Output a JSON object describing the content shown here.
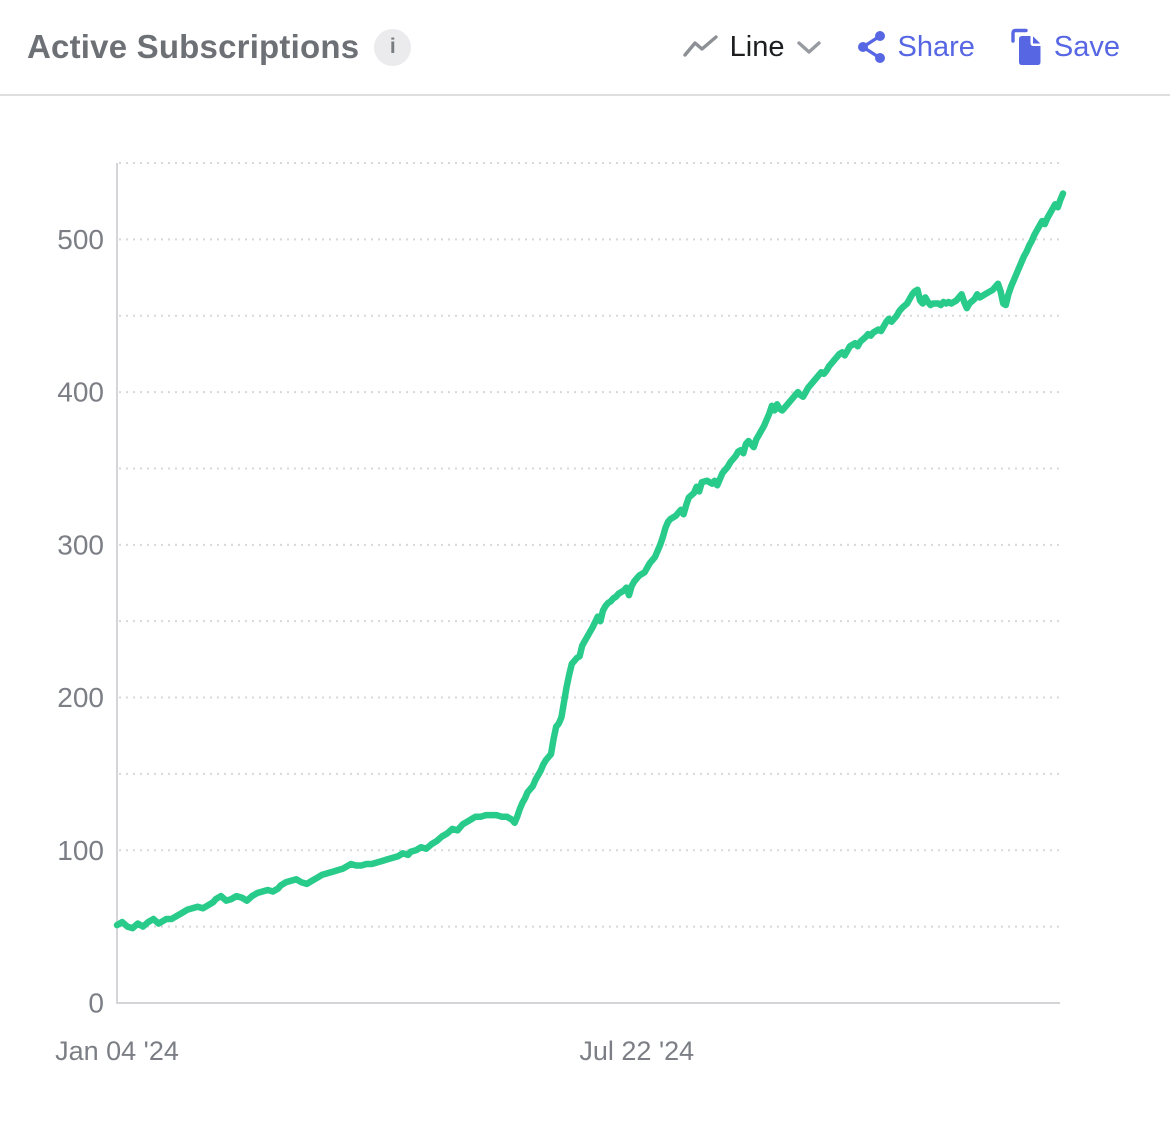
{
  "header": {
    "title": "Active Subscriptions",
    "info_glyph": "i",
    "chart_type_label": "Line",
    "share_label": "Share",
    "save_label": "Save"
  },
  "colors": {
    "series_green": "#29cb8b",
    "accent_blue": "#5767e4",
    "icon_gray": "#8d9095",
    "chevron_gray": "#979aa0",
    "tick_text": "#7b7f85",
    "grid_dotted": "#d8d8db",
    "axis_line": "#d5d5d9",
    "title_gray": "#6d7176"
  },
  "chart_data": {
    "type": "line",
    "title": "Active Subscriptions",
    "series_name": "Active Subscriptions",
    "legend": "none",
    "grid": "horizontal dotted",
    "x_unit": "days since Jan 04 '24",
    "x_range": [
      0,
      364
    ],
    "y_range": [
      0,
      550
    ],
    "y_tick_labels": [
      0,
      100,
      200,
      300,
      400,
      500
    ],
    "y_gridlines": [
      50,
      100,
      150,
      200,
      250,
      300,
      350,
      400,
      450,
      500,
      550
    ],
    "x_ticks": [
      {
        "pos": 0,
        "label": "Jan 04 '24"
      },
      {
        "pos": 200,
        "label": "Jul 22 '24"
      }
    ],
    "points": [
      [
        0,
        51
      ],
      [
        2,
        53
      ],
      [
        4,
        50
      ],
      [
        6,
        49
      ],
      [
        8,
        52
      ],
      [
        10,
        50
      ],
      [
        12,
        53
      ],
      [
        14,
        55
      ],
      [
        16,
        52
      ],
      [
        18,
        54
      ],
      [
        19,
        55
      ],
      [
        21,
        55
      ],
      [
        23,
        57
      ],
      [
        25,
        59
      ],
      [
        27,
        61
      ],
      [
        29,
        62
      ],
      [
        31,
        63
      ],
      [
        33,
        62
      ],
      [
        35,
        64
      ],
      [
        37,
        66
      ],
      [
        38,
        68
      ],
      [
        40,
        70
      ],
      [
        42,
        67
      ],
      [
        44,
        68
      ],
      [
        46,
        70
      ],
      [
        48,
        69
      ],
      [
        50,
        67
      ],
      [
        52,
        70
      ],
      [
        54,
        72
      ],
      [
        56,
        73
      ],
      [
        58,
        74
      ],
      [
        60,
        73
      ],
      [
        62,
        75
      ],
      [
        63,
        77
      ],
      [
        65,
        79
      ],
      [
        67,
        80
      ],
      [
        69,
        81
      ],
      [
        71,
        79
      ],
      [
        73,
        78
      ],
      [
        75,
        80
      ],
      [
        77,
        82
      ],
      [
        79,
        84
      ],
      [
        81,
        85
      ],
      [
        83,
        86
      ],
      [
        85,
        87
      ],
      [
        87,
        88
      ],
      [
        88,
        89
      ],
      [
        90,
        91
      ],
      [
        92,
        90
      ],
      [
        94,
        90
      ],
      [
        96,
        91
      ],
      [
        98,
        91
      ],
      [
        100,
        92
      ],
      [
        102,
        93
      ],
      [
        104,
        94
      ],
      [
        106,
        95
      ],
      [
        108,
        96
      ],
      [
        110,
        98
      ],
      [
        112,
        97
      ],
      [
        113,
        99
      ],
      [
        115,
        100
      ],
      [
        117,
        102
      ],
      [
        119,
        101
      ],
      [
        121,
        104
      ],
      [
        123,
        106
      ],
      [
        125,
        109
      ],
      [
        127,
        111
      ],
      [
        129,
        114
      ],
      [
        131,
        113
      ],
      [
        133,
        117
      ],
      [
        135,
        119
      ],
      [
        137,
        121
      ],
      [
        138,
        122
      ],
      [
        140,
        122
      ],
      [
        142,
        123
      ],
      [
        144,
        123
      ],
      [
        146,
        123
      ],
      [
        148,
        122
      ],
      [
        150,
        122
      ],
      [
        152,
        120
      ],
      [
        153,
        118
      ],
      [
        154,
        122
      ],
      [
        155,
        127
      ],
      [
        156,
        131
      ],
      [
        157,
        134
      ],
      [
        158,
        138
      ],
      [
        160,
        142
      ],
      [
        161,
        146
      ],
      [
        162,
        149
      ],
      [
        163,
        152
      ],
      [
        164,
        156
      ],
      [
        165,
        159
      ],
      [
        167,
        163
      ],
      [
        168,
        173
      ],
      [
        169,
        181
      ],
      [
        170,
        183
      ],
      [
        171,
        187
      ],
      [
        172,
        197
      ],
      [
        173,
        207
      ],
      [
        174,
        215
      ],
      [
        175,
        222
      ],
      [
        177,
        226
      ],
      [
        178,
        227
      ],
      [
        179,
        234
      ],
      [
        180,
        237
      ],
      [
        182,
        243
      ],
      [
        183,
        246
      ],
      [
        185,
        253
      ],
      [
        186,
        250
      ],
      [
        187,
        257
      ],
      [
        188,
        260
      ],
      [
        189,
        262
      ],
      [
        190,
        263
      ],
      [
        191,
        265
      ],
      [
        192,
        266
      ],
      [
        193,
        268
      ],
      [
        195,
        270
      ],
      [
        196,
        272
      ],
      [
        197,
        267
      ],
      [
        198,
        273
      ],
      [
        199,
        276
      ],
      [
        200,
        278
      ],
      [
        201,
        280
      ],
      [
        203,
        282
      ],
      [
        204,
        285
      ],
      [
        205,
        288
      ],
      [
        206,
        290
      ],
      [
        207,
        292
      ],
      [
        208,
        296
      ],
      [
        209,
        300
      ],
      [
        210,
        305
      ],
      [
        211,
        311
      ],
      [
        212,
        315
      ],
      [
        213,
        317
      ],
      [
        215,
        319
      ],
      [
        216,
        321
      ],
      [
        217,
        323
      ],
      [
        218,
        320
      ],
      [
        219,
        326
      ],
      [
        220,
        331
      ],
      [
        222,
        334
      ],
      [
        223,
        338
      ],
      [
        224,
        335
      ],
      [
        225,
        341
      ],
      [
        227,
        342
      ],
      [
        228,
        341
      ],
      [
        229,
        340
      ],
      [
        230,
        342
      ],
      [
        231,
        339
      ],
      [
        232,
        343
      ],
      [
        233,
        347
      ],
      [
        235,
        351
      ],
      [
        236,
        354
      ],
      [
        237,
        356
      ],
      [
        238,
        358
      ],
      [
        239,
        361
      ],
      [
        240,
        362
      ],
      [
        241,
        360
      ],
      [
        242,
        366
      ],
      [
        243,
        368
      ],
      [
        245,
        364
      ],
      [
        246,
        369
      ],
      [
        247,
        372
      ],
      [
        248,
        375
      ],
      [
        249,
        378
      ],
      [
        250,
        382
      ],
      [
        251,
        386
      ],
      [
        252,
        391
      ],
      [
        253,
        388
      ],
      [
        254,
        392
      ],
      [
        255,
        389
      ],
      [
        256,
        388
      ],
      [
        257,
        390
      ],
      [
        258,
        392
      ],
      [
        259,
        394
      ],
      [
        260,
        396
      ],
      [
        261,
        398
      ],
      [
        262,
        400
      ],
      [
        263,
        398
      ],
      [
        264,
        397
      ],
      [
        265,
        400
      ],
      [
        266,
        403
      ],
      [
        267,
        405
      ],
      [
        268,
        407
      ],
      [
        269,
        409
      ],
      [
        270,
        411
      ],
      [
        271,
        413
      ],
      [
        272,
        412
      ],
      [
        273,
        414
      ],
      [
        274,
        417
      ],
      [
        275,
        419
      ],
      [
        276,
        421
      ],
      [
        277,
        423
      ],
      [
        278,
        425
      ],
      [
        279,
        426
      ],
      [
        280,
        424
      ],
      [
        281,
        427
      ],
      [
        282,
        430
      ],
      [
        284,
        432
      ],
      [
        285,
        430
      ],
      [
        286,
        433
      ],
      [
        288,
        436
      ],
      [
        289,
        438
      ],
      [
        290,
        437
      ],
      [
        291,
        439
      ],
      [
        293,
        441
      ],
      [
        294,
        440
      ],
      [
        295,
        443
      ],
      [
        296,
        446
      ],
      [
        297,
        448
      ],
      [
        298,
        446
      ],
      [
        300,
        450
      ],
      [
        301,
        453
      ],
      [
        302,
        455
      ],
      [
        304,
        458
      ],
      [
        305,
        461
      ],
      [
        306,
        464
      ],
      [
        307,
        466
      ],
      [
        308,
        467
      ],
      [
        309,
        460
      ],
      [
        310,
        458
      ],
      [
        311,
        462
      ],
      [
        312,
        459
      ],
      [
        313,
        457
      ],
      [
        314,
        458
      ],
      [
        316,
        458
      ],
      [
        317,
        457
      ],
      [
        318,
        459
      ],
      [
        319,
        458
      ],
      [
        320,
        459
      ],
      [
        321,
        458
      ],
      [
        323,
        460
      ],
      [
        324,
        462
      ],
      [
        325,
        464
      ],
      [
        326,
        459
      ],
      [
        327,
        455
      ],
      [
        328,
        458
      ],
      [
        330,
        461
      ],
      [
        331,
        464
      ],
      [
        332,
        462
      ],
      [
        333,
        463
      ],
      [
        334,
        464
      ],
      [
        335,
        465
      ],
      [
        337,
        467
      ],
      [
        338,
        469
      ],
      [
        339,
        471
      ],
      [
        340,
        466
      ],
      [
        341,
        458
      ],
      [
        342,
        457
      ],
      [
        343,
        464
      ],
      [
        344,
        469
      ],
      [
        345,
        473
      ],
      [
        346,
        477
      ],
      [
        347,
        481
      ],
      [
        348,
        485
      ],
      [
        349,
        489
      ],
      [
        350,
        492
      ],
      [
        351,
        496
      ],
      [
        352,
        499
      ],
      [
        353,
        503
      ],
      [
        354,
        506
      ],
      [
        355,
        509
      ],
      [
        356,
        512
      ],
      [
        357,
        510
      ],
      [
        358,
        514
      ],
      [
        359,
        517
      ],
      [
        360,
        520
      ],
      [
        361,
        523
      ],
      [
        362,
        521
      ],
      [
        363,
        526
      ],
      [
        364,
        530
      ]
    ]
  }
}
